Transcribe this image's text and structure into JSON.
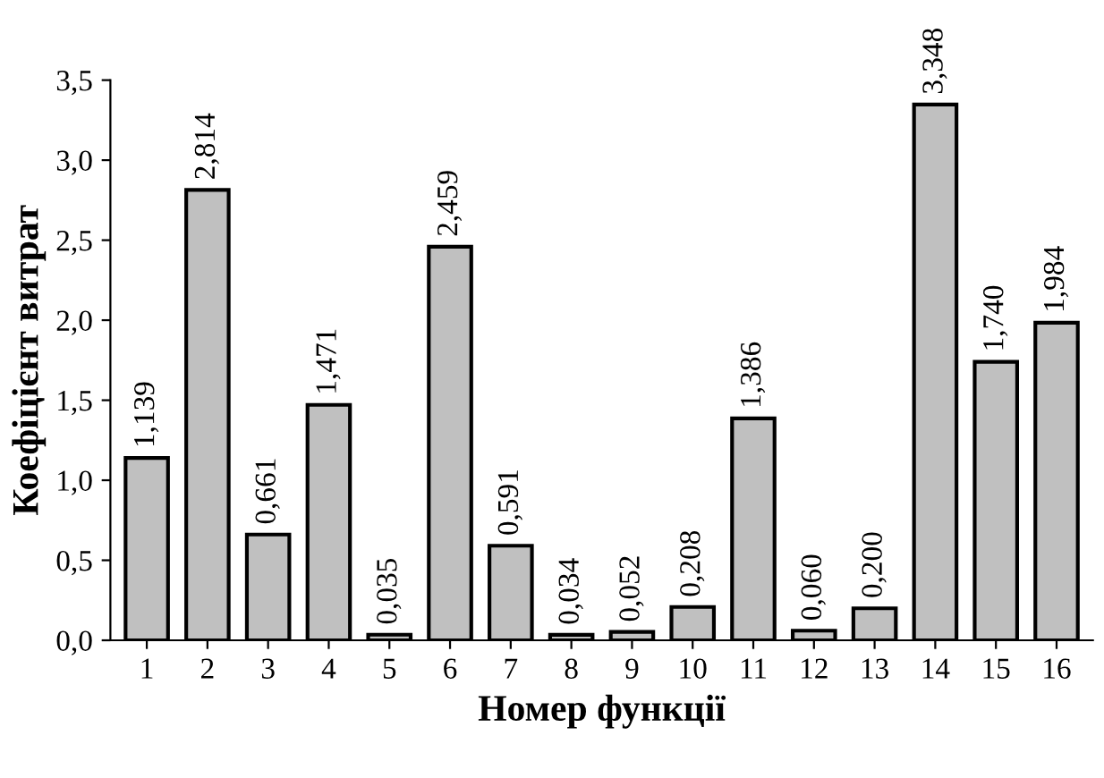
{
  "chart_data": {
    "type": "bar",
    "xlabel": "Номер функції",
    "ylabel": "Коефіцієнт витрат",
    "categories": [
      "1",
      "2",
      "3",
      "4",
      "5",
      "6",
      "7",
      "8",
      "9",
      "10",
      "11",
      "12",
      "13",
      "14",
      "15",
      "16"
    ],
    "values": [
      1.139,
      2.814,
      0.661,
      1.471,
      0.035,
      2.459,
      0.591,
      0.034,
      0.052,
      0.208,
      1.386,
      0.06,
      0.2,
      3.348,
      1.74,
      1.984
    ],
    "value_labels": [
      "1,139",
      "2,814",
      "0,661",
      "1,471",
      "0,035",
      "2,459",
      "0,591",
      "0,034",
      "0,052",
      "0,208",
      "1,386",
      "0,060",
      "0,200",
      "3,348",
      "1,740",
      "1,984"
    ],
    "color": "#c0c0c0",
    "ylim": [
      0,
      3.5
    ],
    "yticks": [
      {
        "value": 0,
        "label": "0,0"
      },
      {
        "value": 0.5,
        "label": "0,5"
      },
      {
        "value": 1,
        "label": "1,0"
      },
      {
        "value": 1.5,
        "label": "1,5"
      },
      {
        "value": 2,
        "label": "2,0"
      },
      {
        "value": 2.5,
        "label": "2,5"
      },
      {
        "value": 3,
        "label": "3,0"
      },
      {
        "value": 3.5,
        "label": "3,5"
      }
    ],
    "grid": false,
    "legend": false
  }
}
